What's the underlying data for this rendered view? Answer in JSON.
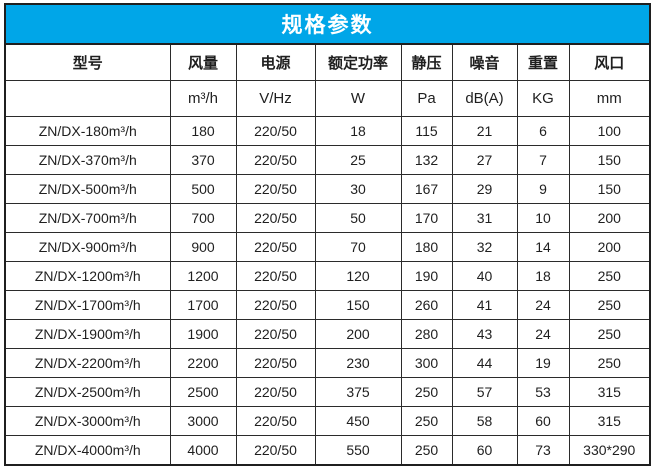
{
  "title": "规格参数",
  "colors": {
    "accent": "#00a6e8",
    "border": "#1f1f1f",
    "title_text": "#ffffff"
  },
  "table": {
    "headers": [
      "型号",
      "风量",
      "电源",
      "额定功率",
      "静压",
      "噪音",
      "重置",
      "风口"
    ],
    "units": [
      "",
      "m³/h",
      "V/Hz",
      "W",
      "Pa",
      "dB(A)",
      "KG",
      "mm"
    ],
    "rows": [
      [
        "ZN/DX-180m³/h",
        "180",
        "220/50",
        "18",
        "115",
        "21",
        "6",
        "100"
      ],
      [
        "ZN/DX-370m³/h",
        "370",
        "220/50",
        "25",
        "132",
        "27",
        "7",
        "150"
      ],
      [
        "ZN/DX-500m³/h",
        "500",
        "220/50",
        "30",
        "167",
        "29",
        "9",
        "150"
      ],
      [
        "ZN/DX-700m³/h",
        "700",
        "220/50",
        "50",
        "170",
        "31",
        "10",
        "200"
      ],
      [
        "ZN/DX-900m³/h",
        "900",
        "220/50",
        "70",
        "180",
        "32",
        "14",
        "200"
      ],
      [
        "ZN/DX-1200m³/h",
        "1200",
        "220/50",
        "120",
        "190",
        "40",
        "18",
        "250"
      ],
      [
        "ZN/DX-1700m³/h",
        "1700",
        "220/50",
        "150",
        "260",
        "41",
        "24",
        "250"
      ],
      [
        "ZN/DX-1900m³/h",
        "1900",
        "220/50",
        "200",
        "280",
        "43",
        "24",
        "250"
      ],
      [
        "ZN/DX-2200m³/h",
        "2200",
        "220/50",
        "230",
        "300",
        "44",
        "19",
        "250"
      ],
      [
        "ZN/DX-2500m³/h",
        "2500",
        "220/50",
        "375",
        "250",
        "57",
        "53",
        "315"
      ],
      [
        "ZN/DX-3000m³/h",
        "3000",
        "220/50",
        "450",
        "250",
        "58",
        "60",
        "315"
      ],
      [
        "ZN/DX-4000m³/h",
        "4000",
        "220/50",
        "550",
        "250",
        "60",
        "73",
        "330*290"
      ]
    ]
  }
}
